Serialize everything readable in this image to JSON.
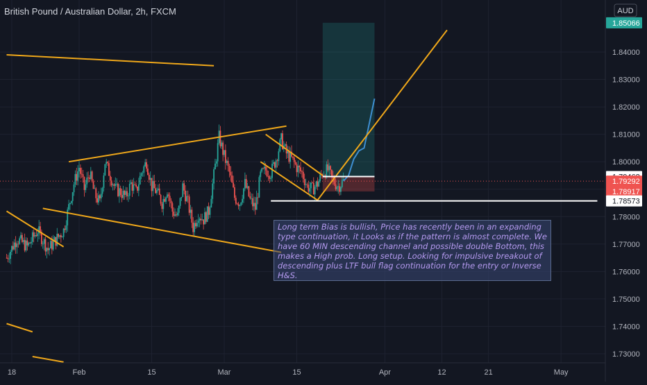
{
  "chart_data": {
    "type": "candlestick",
    "title": "British Pound / Australian Dollar, 2h, FXCM",
    "currency": "AUD",
    "y_axis": {
      "min": 1.73,
      "max": 1.855,
      "ticks": [
        "1.73000",
        "1.74000",
        "1.75000",
        "1.76000",
        "1.77000",
        "1.78000",
        "1.79000",
        "1.80000",
        "1.81000",
        "1.82000",
        "1.83000",
        "1.84000"
      ],
      "tick_values": [
        1.73,
        1.74,
        1.75,
        1.76,
        1.77,
        1.78,
        1.79,
        1.8,
        1.81,
        1.82,
        1.83,
        1.84
      ]
    },
    "x_axis": {
      "labels": [
        "18",
        "Feb",
        "15",
        "Mar",
        "15",
        "Apr",
        "12",
        "21",
        "May"
      ],
      "label_days": [
        -13,
        0,
        14,
        28,
        42,
        59,
        70,
        79,
        93
      ],
      "range_days": [
        -14,
        100
      ]
    },
    "price_labels": [
      {
        "text": "1.85066",
        "value": 1.85066,
        "color": "#26a69a",
        "text_color": "#ffffff"
      },
      {
        "text": "1.79462",
        "value": 1.79462,
        "color": "#ffffff",
        "text_color": "#131722"
      },
      {
        "text": "1.79292",
        "value": 1.79292,
        "color": "#ef5350",
        "text_color": "#ffffff"
      },
      {
        "text": "1.78917",
        "value": 1.78917,
        "color": "#ef5350",
        "text_color": "#ffffff"
      },
      {
        "text": "1.78573",
        "value": 1.78573,
        "color": "#ffffff",
        "text_color": "#131722"
      }
    ],
    "current_price": 1.79292,
    "price_path": [
      [
        -14,
        1.765
      ],
      [
        -12,
        1.772
      ],
      [
        -10,
        1.769
      ],
      [
        -8,
        1.775
      ],
      [
        -6,
        1.768
      ],
      [
        -3,
        1.775
      ],
      [
        -1,
        1.792
      ],
      [
        0,
        1.798
      ],
      [
        1,
        1.79
      ],
      [
        2,
        1.796
      ],
      [
        3,
        1.788
      ],
      [
        4,
        1.785
      ],
      [
        5,
        1.8
      ],
      [
        6,
        1.795
      ],
      [
        7,
        1.79
      ],
      [
        8,
        1.789
      ],
      [
        9,
        1.787
      ],
      [
        10,
        1.792
      ],
      [
        11,
        1.789
      ],
      [
        12,
        1.796
      ],
      [
        13,
        1.8
      ],
      [
        14,
        1.791
      ],
      [
        15,
        1.789
      ],
      [
        16,
        1.785
      ],
      [
        17,
        1.79
      ],
      [
        18,
        1.782
      ],
      [
        19,
        1.78
      ],
      [
        20,
        1.791
      ],
      [
        21,
        1.785
      ],
      [
        22,
        1.776
      ],
      [
        23,
        1.781
      ],
      [
        24,
        1.779
      ],
      [
        25,
        1.782
      ],
      [
        26,
        1.795
      ],
      [
        27,
        1.809
      ],
      [
        28,
        1.802
      ],
      [
        29,
        1.796
      ],
      [
        30,
        1.787
      ],
      [
        31,
        1.785
      ],
      [
        32,
        1.792
      ],
      [
        33,
        1.786
      ],
      [
        34,
        1.783
      ],
      [
        35,
        1.795
      ],
      [
        36,
        1.797
      ],
      [
        37,
        1.796
      ],
      [
        38,
        1.801
      ],
      [
        39,
        1.808
      ],
      [
        40,
        1.803
      ],
      [
        41,
        1.801
      ],
      [
        42,
        1.798
      ],
      [
        43,
        1.796
      ],
      [
        44,
        1.791
      ],
      [
        45,
        1.79
      ],
      [
        46,
        1.792
      ],
      [
        47,
        1.796
      ],
      [
        48,
        1.797
      ],
      [
        49,
        1.793
      ],
      [
        50,
        1.791
      ],
      [
        51,
        1.793
      ]
    ],
    "projection": [
      [
        51,
        1.793
      ],
      [
        52,
        1.795
      ],
      [
        53,
        1.801
      ],
      [
        54,
        1.804
      ],
      [
        55,
        1.805
      ],
      [
        56,
        1.814
      ],
      [
        57,
        1.823
      ]
    ],
    "trendlines": [
      [
        [
          -14,
          1.839
        ],
        [
          26,
          1.835
        ]
      ],
      [
        [
          -2,
          1.8
        ],
        [
          40,
          1.813
        ]
      ],
      [
        [
          -7,
          1.783
        ],
        [
          39,
          1.767
        ]
      ],
      [
        [
          -14,
          1.782
        ],
        [
          -3,
          1.769
        ]
      ],
      [
        [
          -14,
          1.741
        ],
        [
          -9,
          1.738
        ]
      ],
      [
        [
          -9,
          1.729
        ],
        [
          -3,
          1.727
        ]
      ],
      [
        [
          36,
          1.81
        ],
        [
          47,
          1.795
        ]
      ],
      [
        [
          35,
          1.8
        ],
        [
          46,
          1.786
        ]
      ],
      [
        [
          46,
          1.786
        ],
        [
          71,
          1.848
        ]
      ]
    ],
    "levels": [
      {
        "value": 1.79462,
        "from": 47,
        "to": 57
      },
      {
        "value": 1.78573,
        "from": 37,
        "to": 100
      }
    ],
    "long_position": {
      "from": 47,
      "to": 57,
      "entry": 1.79462,
      "target": 1.85066,
      "stop": 1.78917
    },
    "annotation": "Long term Bias is bullish, Price has recently been in an expanding type continuation, it Looks as if the pattern is almost complete. We have 60 MIN descending channel and possible double Bottom, this makes a High prob. Long setup. Looking for impulsive breakout of descending plus LTF bull flag continuation for the entry or Inverse H&S.",
    "colors": {
      "background": "#131722",
      "up": "#26a69a",
      "down": "#ef5350",
      "trendline": "#f0a81a",
      "projection": "#3f8fd2",
      "grid": "#1e2230",
      "axis_text": "#b2b5be"
    }
  }
}
